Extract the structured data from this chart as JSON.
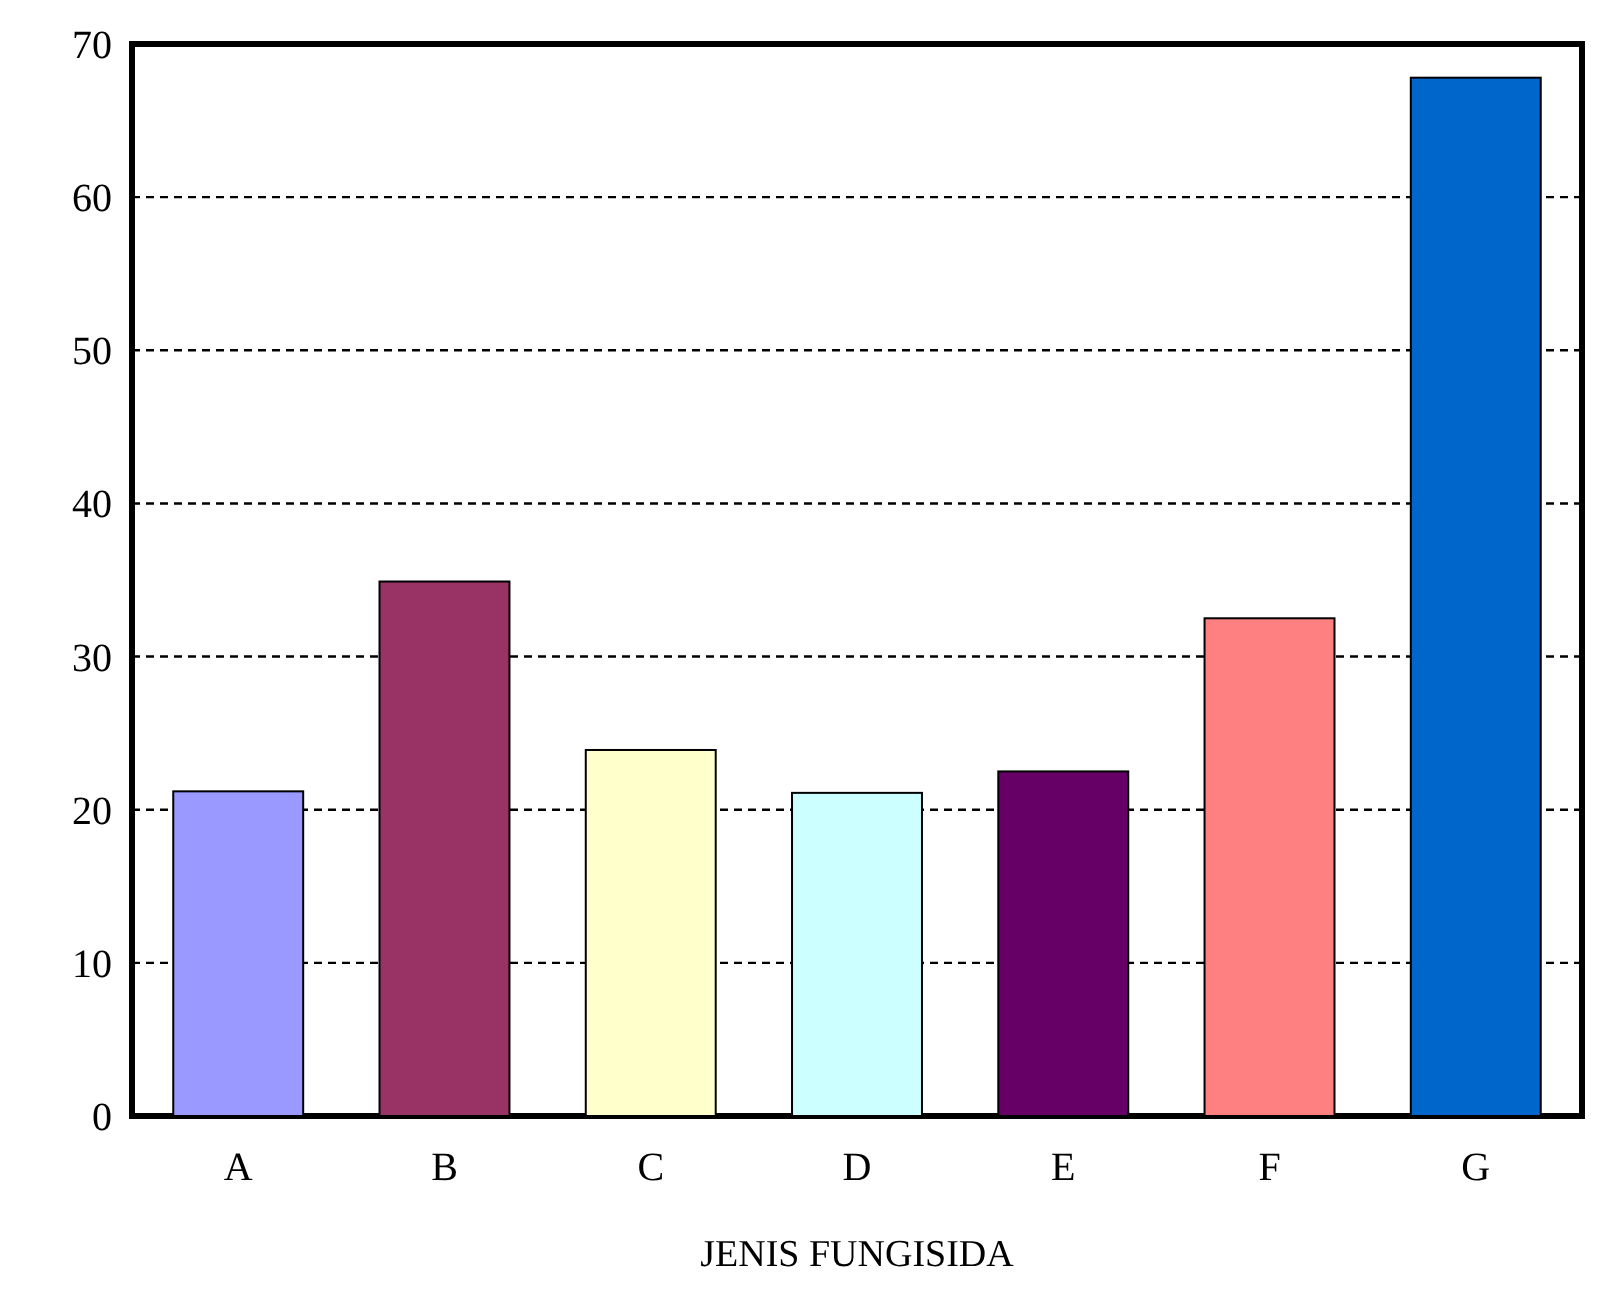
{
  "chart_data": {
    "type": "bar",
    "xlabel": "JENIS FUNGISIDA",
    "categories": [
      "A",
      "B",
      "C",
      "D",
      "E",
      "F",
      "G"
    ],
    "values": [
      21.2,
      34.9,
      23.9,
      21.1,
      22.5,
      32.5,
      67.8
    ],
    "colors": [
      "#9999ff",
      "#993366",
      "#ffffcc",
      "#ccffff",
      "#660066",
      "#ff8080",
      "#0066cc"
    ],
    "ylim": [
      0,
      70
    ],
    "yticks": [
      0,
      10,
      20,
      30,
      40,
      50,
      60,
      70
    ],
    "grid": "y"
  }
}
